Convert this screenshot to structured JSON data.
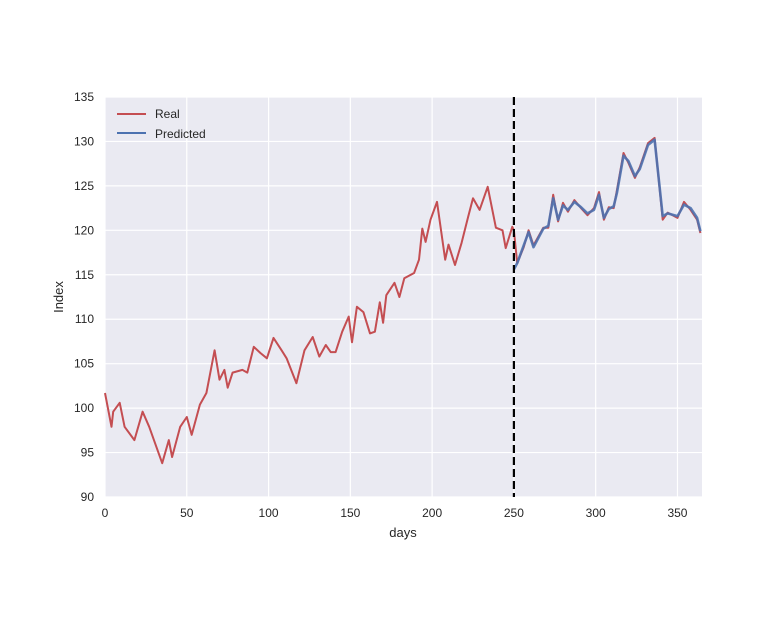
{
  "chart_data": {
    "type": "line",
    "title": "",
    "xlabel": "days",
    "ylabel": "Index",
    "xlim": [
      0,
      365
    ],
    "ylim": [
      90,
      135
    ],
    "xticks": [
      0,
      50,
      100,
      150,
      200,
      250,
      300,
      350
    ],
    "yticks": [
      90,
      95,
      100,
      105,
      110,
      115,
      120,
      125,
      130,
      135
    ],
    "grid": true,
    "legend_position": "top-left",
    "background": "#EAEAF2",
    "vline": {
      "x": 250,
      "style": "dashed",
      "color": "#000000"
    },
    "series": [
      {
        "name": "Real",
        "color": "#C44E52",
        "points": [
          [
            0,
            101.7
          ],
          [
            4,
            97.9
          ],
          [
            5,
            99.6
          ],
          [
            9,
            100.6
          ],
          [
            12,
            97.9
          ],
          [
            18,
            96.4
          ],
          [
            23,
            99.6
          ],
          [
            27,
            97.9
          ],
          [
            35,
            93.8
          ],
          [
            39,
            96.4
          ],
          [
            41,
            94.5
          ],
          [
            46,
            97.9
          ],
          [
            50,
            99.0
          ],
          [
            53,
            97.0
          ],
          [
            58,
            100.4
          ],
          [
            62,
            101.7
          ],
          [
            67,
            106.5
          ],
          [
            70,
            103.2
          ],
          [
            73,
            104.3
          ],
          [
            75,
            102.3
          ],
          [
            78,
            104.0
          ],
          [
            84,
            104.3
          ],
          [
            87,
            104.0
          ],
          [
            91,
            106.9
          ],
          [
            95,
            106.2
          ],
          [
            99,
            105.6
          ],
          [
            103,
            107.9
          ],
          [
            108,
            106.5
          ],
          [
            111,
            105.6
          ],
          [
            117,
            102.8
          ],
          [
            122,
            106.5
          ],
          [
            127,
            108.0
          ],
          [
            131,
            105.8
          ],
          [
            135,
            107.1
          ],
          [
            138,
            106.3
          ],
          [
            141,
            106.3
          ],
          [
            145,
            108.6
          ],
          [
            149,
            110.3
          ],
          [
            151,
            107.4
          ],
          [
            154,
            111.4
          ],
          [
            158,
            110.8
          ],
          [
            162,
            108.4
          ],
          [
            165,
            108.6
          ],
          [
            168,
            111.9
          ],
          [
            170,
            109.6
          ],
          [
            172,
            112.7
          ],
          [
            177,
            114.1
          ],
          [
            180,
            112.5
          ],
          [
            183,
            114.6
          ],
          [
            189,
            115.2
          ],
          [
            192,
            116.7
          ],
          [
            194,
            120.2
          ],
          [
            196,
            118.7
          ],
          [
            199,
            121.2
          ],
          [
            203,
            123.2
          ],
          [
            208,
            116.7
          ],
          [
            210,
            118.4
          ],
          [
            214,
            116.1
          ],
          [
            218,
            118.6
          ],
          [
            222,
            121.5
          ],
          [
            225,
            123.6
          ],
          [
            229,
            122.3
          ],
          [
            234,
            124.9
          ],
          [
            239,
            120.3
          ],
          [
            243,
            120.0
          ],
          [
            245,
            118.0
          ],
          [
            249,
            120.4
          ],
          [
            250,
            120.0
          ],
          [
            252,
            116.3
          ],
          [
            256,
            118.1
          ],
          [
            259,
            120.0
          ],
          [
            262,
            118.3
          ],
          [
            268,
            120.3
          ],
          [
            271,
            120.3
          ],
          [
            274,
            124.0
          ],
          [
            277,
            121.0
          ],
          [
            280,
            123.1
          ],
          [
            283,
            122.1
          ],
          [
            287,
            123.4
          ],
          [
            291,
            122.5
          ],
          [
            295,
            121.7
          ],
          [
            299,
            122.5
          ],
          [
            302,
            124.3
          ],
          [
            305,
            121.2
          ],
          [
            308,
            122.6
          ],
          [
            311,
            122.5
          ],
          [
            313,
            124.5
          ],
          [
            317,
            128.7
          ],
          [
            320,
            127.6
          ],
          [
            324,
            125.9
          ],
          [
            327,
            127.1
          ],
          [
            332,
            129.8
          ],
          [
            336,
            130.4
          ],
          [
            341,
            121.2
          ],
          [
            344,
            122.0
          ],
          [
            350,
            121.4
          ],
          [
            354,
            123.2
          ],
          [
            358,
            122.3
          ],
          [
            362,
            121.2
          ],
          [
            364,
            119.7
          ]
        ]
      },
      {
        "name": "Predicted",
        "color": "#4C72B0",
        "points": [
          [
            250,
            115.6
          ],
          [
            252,
            116.3
          ],
          [
            256,
            118.3
          ],
          [
            259,
            119.8
          ],
          [
            262,
            118.1
          ],
          [
            268,
            120.2
          ],
          [
            271,
            120.5
          ],
          [
            274,
            123.6
          ],
          [
            277,
            121.2
          ],
          [
            280,
            122.8
          ],
          [
            283,
            122.3
          ],
          [
            287,
            123.2
          ],
          [
            291,
            122.6
          ],
          [
            295,
            121.9
          ],
          [
            299,
            122.3
          ],
          [
            302,
            124.0
          ],
          [
            305,
            121.4
          ],
          [
            308,
            122.4
          ],
          [
            311,
            122.7
          ],
          [
            313,
            124.2
          ],
          [
            317,
            128.4
          ],
          [
            320,
            127.8
          ],
          [
            324,
            126.1
          ],
          [
            327,
            126.9
          ],
          [
            332,
            129.6
          ],
          [
            336,
            130.2
          ],
          [
            341,
            121.6
          ],
          [
            344,
            121.9
          ],
          [
            350,
            121.6
          ],
          [
            354,
            122.9
          ],
          [
            358,
            122.5
          ],
          [
            362,
            121.4
          ],
          [
            364,
            119.9
          ]
        ]
      }
    ]
  }
}
